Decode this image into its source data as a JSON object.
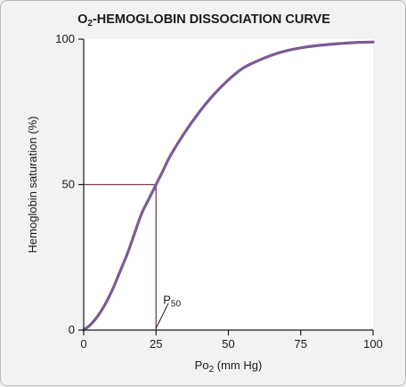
{
  "chart_data": {
    "type": "line",
    "title": {
      "main": "-HEMOGLOBIN DISSOCIATION CURVE",
      "prefix": "O",
      "prefix_sub": "2"
    },
    "xlabel": {
      "pre": "Po",
      "sub": "2",
      "post": " (mm Hg)"
    },
    "ylabel": "Hemoglobin saturation (%)",
    "xlim": [
      0,
      100
    ],
    "ylim": [
      0,
      100
    ],
    "xticks": [
      0,
      25,
      50,
      75,
      100
    ],
    "yticks": [
      0,
      50,
      100
    ],
    "xtick_labels": [
      "0",
      "25",
      "50",
      "75",
      "100"
    ],
    "ytick_labels": [
      "0",
      "50",
      "100"
    ],
    "grid": false,
    "series": [
      {
        "color": "#7b5b96",
        "x": [
          0,
          2.5,
          5,
          7.5,
          10,
          12.5,
          15,
          17.5,
          20,
          22.5,
          25,
          27.5,
          30,
          35,
          40,
          45,
          50,
          55,
          60,
          65,
          70,
          75,
          80,
          85,
          90,
          95,
          100
        ],
        "y": [
          0,
          2,
          5,
          9,
          14,
          20,
          26,
          33,
          40,
          45,
          50,
          55,
          60,
          68,
          75,
          81,
          86,
          90,
          92.5,
          94.5,
          96,
          97,
          97.7,
          98.2,
          98.6,
          98.9,
          99
        ]
      }
    ],
    "reference": {
      "x": 25,
      "y": 50,
      "color": "#7d3a55"
    },
    "annotation": {
      "pre": "P",
      "sub": "50",
      "x": 25,
      "y": 9
    }
  }
}
